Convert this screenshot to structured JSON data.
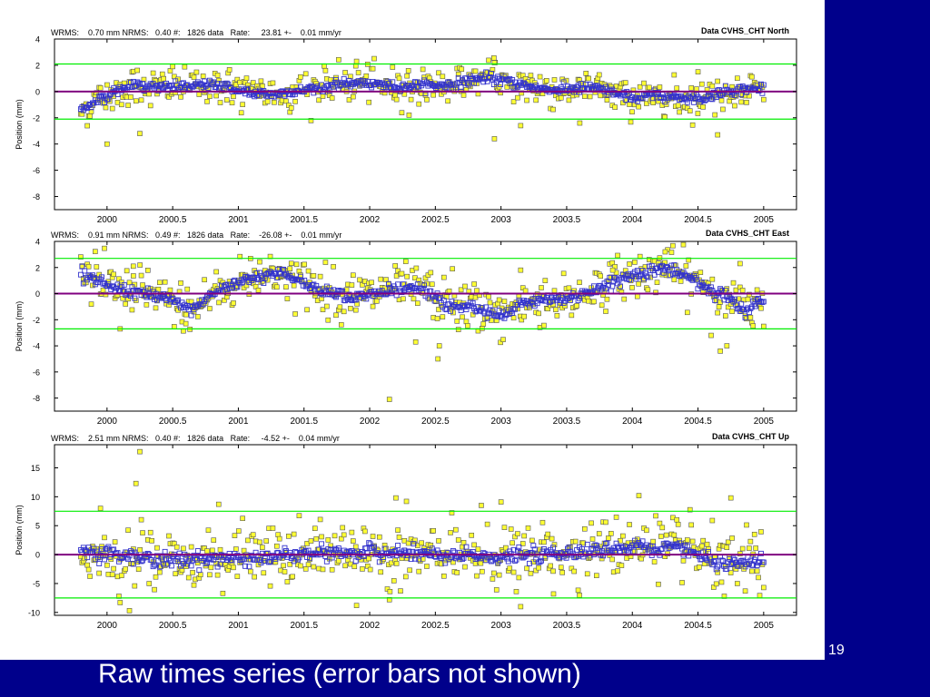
{
  "slide": {
    "number": "19",
    "caption": "Raw times series (error bars not shown)"
  },
  "colors": {
    "background": "#00008b",
    "panel": "#ffffff",
    "data_points": "#ffff33",
    "data_point_outline": "#0000cc",
    "smoothed_points": "#3333cc",
    "zero_line": "#800080",
    "bound_lines": "#00ee00"
  },
  "chart_data": [
    {
      "type": "scatter",
      "id": "north",
      "title": "Data CVHS_CHT North",
      "stats": "WRMS:    0.70 mm NRMS:   0.40 #:   1826 data   Rate:     23.81 +-    0.01 mm/yr",
      "xlabel": "",
      "ylabel": "Position (mm)",
      "xlim": [
        1999.6,
        2005.25
      ],
      "ylim": [
        -9,
        4
      ],
      "xticks": [
        "2000",
        "2000.5",
        "2001",
        "2001.5",
        "2002",
        "2002.5",
        "2003",
        "2003.5",
        "2004",
        "2004.5",
        "2005"
      ],
      "yticks": [
        "4",
        "2",
        "0",
        "-2",
        "-4",
        "-6",
        "-8"
      ],
      "zero_line": 0,
      "bounds": [
        2.1,
        -2.1
      ],
      "start": 1999.8,
      "end": 2005.0,
      "scatter": 0.7,
      "trend": [
        [
          1999.8,
          -1.5
        ],
        [
          1999.95,
          -0.5
        ],
        [
          2000.2,
          0.5
        ],
        [
          2000.4,
          0.3
        ],
        [
          2000.6,
          0.4
        ],
        [
          2000.9,
          0.5
        ],
        [
          2001.0,
          0
        ],
        [
          2001.3,
          -0.2
        ],
        [
          2001.6,
          0.3
        ],
        [
          2001.9,
          0.7
        ],
        [
          2002.2,
          0.4
        ],
        [
          2002.6,
          0.5
        ],
        [
          2002.9,
          1.1
        ],
        [
          2003.1,
          0.6
        ],
        [
          2003.4,
          0.1
        ],
        [
          2003.7,
          0.3
        ],
        [
          2004.0,
          -0.5
        ],
        [
          2004.2,
          -0.3
        ],
        [
          2004.5,
          -0.6
        ],
        [
          2004.7,
          0
        ],
        [
          2005.0,
          0.3
        ]
      ],
      "outliers": [
        [
          2000.0,
          -4.0
        ],
        [
          2000.25,
          -3.2
        ],
        [
          2002.95,
          -3.6
        ],
        [
          2003.15,
          -2.6
        ],
        [
          2004.65,
          -3.3
        ],
        [
          2002.3,
          -1.8
        ],
        [
          2001.9,
          2.3
        ],
        [
          2002.95,
          2.2
        ],
        [
          2000.5,
          1.9
        ],
        [
          2002.7,
          1.7
        ],
        [
          2004.5,
          1.5
        ],
        [
          2003.6,
          -2.4
        ]
      ]
    },
    {
      "type": "scatter",
      "id": "east",
      "title": "Data CVHS_CHT East",
      "stats": "WRMS:    0.91 mm NRMS:   0.49 #:   1826 data   Rate:    -26.08 +-    0.01 mm/yr",
      "xlabel": "",
      "ylabel": "Position (mm)",
      "xlim": [
        1999.6,
        2005.25
      ],
      "ylim": [
        -9,
        4
      ],
      "xticks": [
        "2000",
        "2000.5",
        "2001",
        "2001.5",
        "2002",
        "2002.5",
        "2003",
        "2003.5",
        "2004",
        "2004.5",
        "2005"
      ],
      "yticks": [
        "4",
        "2",
        "0",
        "-2",
        "-4",
        "-6",
        "-8"
      ],
      "zero_line": 0,
      "bounds": [
        2.7,
        -2.7
      ],
      "start": 1999.8,
      "end": 2005.0,
      "scatter": 0.9,
      "trend": [
        [
          1999.8,
          1.8
        ],
        [
          2000.0,
          0.5
        ],
        [
          2000.3,
          0
        ],
        [
          2000.5,
          -0.6
        ],
        [
          2000.65,
          -1.3
        ],
        [
          2000.8,
          0
        ],
        [
          2001.1,
          1.3
        ],
        [
          2001.3,
          1.6
        ],
        [
          2001.6,
          0.4
        ],
        [
          2001.9,
          -0.3
        ],
        [
          2002.2,
          0.3
        ],
        [
          2002.4,
          0.4
        ],
        [
          2002.6,
          -1.0
        ],
        [
          2002.8,
          -1.0
        ],
        [
          2003.0,
          -1.8
        ],
        [
          2003.2,
          -0.6
        ],
        [
          2003.5,
          -0.5
        ],
        [
          2003.7,
          0.3
        ],
        [
          2004.0,
          1.4
        ],
        [
          2004.25,
          2.0
        ],
        [
          2004.5,
          0.9
        ],
        [
          2004.7,
          -0.2
        ],
        [
          2004.85,
          -1.3
        ],
        [
          2005.0,
          -0.5
        ]
      ],
      "outliers": [
        [
          2002.15,
          -8.1
        ],
        [
          2002.52,
          -5.0
        ],
        [
          2002.53,
          -4.0
        ],
        [
          2002.35,
          -3.7
        ],
        [
          2004.67,
          -4.4
        ],
        [
          2004.6,
          -3.2
        ],
        [
          2000.1,
          -2.7
        ],
        [
          2000.6,
          -2.3
        ],
        [
          2004.72,
          -4.0
        ],
        [
          2003.85,
          1.8
        ],
        [
          2004.25,
          3.2
        ],
        [
          2002.63,
          1.9
        ],
        [
          2003.15,
          1.8
        ],
        [
          2000.2,
          2.1
        ],
        [
          2004.82,
          2.3
        ]
      ]
    },
    {
      "type": "scatter",
      "id": "up",
      "title": "Data CVHS_CHT Up",
      "stats": "WRMS:    2.51 mm NRMS:   0.40 #:   1826 data   Rate:     -4.52 +-    0.04 mm/yr",
      "xlabel": "",
      "ylabel": "Position (mm)",
      "xlim": [
        1999.6,
        2005.25
      ],
      "ylim": [
        -10.5,
        19
      ],
      "xticks": [
        "2000",
        "2000.5",
        "2001",
        "2001.5",
        "2002",
        "2002.5",
        "2003",
        "2003.5",
        "2004",
        "2004.5",
        "2005"
      ],
      "yticks": [
        "15",
        "10",
        "5",
        "0",
        "-5",
        "-10"
      ],
      "zero_line": 0,
      "bounds": [
        7.5,
        -7.5
      ],
      "start": 1999.8,
      "end": 2005.0,
      "scatter": 2.5,
      "trend": [
        [
          1999.8,
          0.5
        ],
        [
          2000.5,
          -1.0
        ],
        [
          2001.2,
          -0.5
        ],
        [
          2001.8,
          0.5
        ],
        [
          2002.4,
          0
        ],
        [
          2003.0,
          -0.5
        ],
        [
          2003.6,
          0.5
        ],
        [
          2004.0,
          1.5
        ],
        [
          2004.4,
          1.0
        ],
        [
          2004.7,
          -2.0
        ],
        [
          2005.0,
          -1.0
        ]
      ],
      "outliers": [
        [
          2000.25,
          17.8
        ],
        [
          2000.22,
          12.3
        ],
        [
          2002.2,
          9.8
        ],
        [
          2002.28,
          9.2
        ],
        [
          2004.05,
          10.2
        ],
        [
          2004.75,
          9.8
        ],
        [
          2003.0,
          9.1
        ],
        [
          2002.85,
          8.5
        ],
        [
          2000.85,
          8.7
        ],
        [
          1999.95,
          8.0
        ],
        [
          2000.1,
          -8.3
        ],
        [
          2001.9,
          -8.8
        ],
        [
          2003.15,
          -9.0
        ],
        [
          2004.7,
          -7.2
        ],
        [
          2002.15,
          -7.8
        ],
        [
          2003.4,
          -6.8
        ]
      ]
    }
  ]
}
